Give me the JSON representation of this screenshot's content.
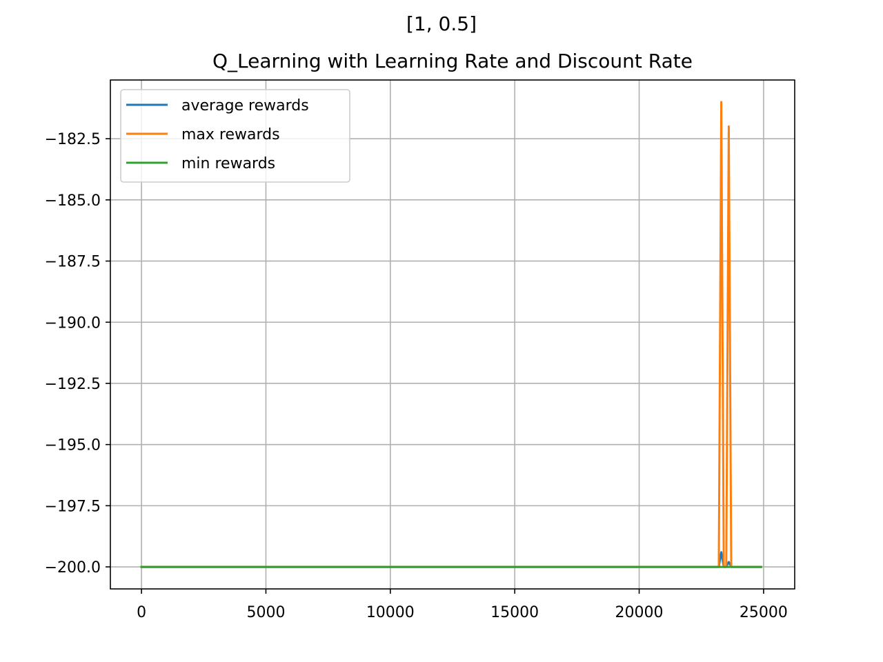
{
  "figure": {
    "suptitle": "[1, 0.5]",
    "title": "Q_Learning with Learning Rate and Discount Rate"
  },
  "chart_data": {
    "type": "line",
    "title": "Q_Learning with Learning Rate and Discount Rate",
    "suptitle": "[1, 0.5]",
    "xlabel": "",
    "ylabel": "",
    "xlim": [
      -1250,
      26250
    ],
    "ylim": [
      -200.9,
      -180.1
    ],
    "xticks": [
      0,
      5000,
      10000,
      15000,
      20000,
      25000
    ],
    "xtick_labels": [
      "0",
      "5000",
      "10000",
      "15000",
      "20000",
      "25000"
    ],
    "yticks": [
      -200.0,
      -197.5,
      -195.0,
      -192.5,
      -190.0,
      -187.5,
      -185.0,
      -182.5
    ],
    "ytick_labels": [
      "−200.0",
      "−197.5",
      "−195.0",
      "−192.5",
      "−190.0",
      "−187.5",
      "−185.0",
      "−182.5"
    ],
    "grid": true,
    "legend_position": "upper-left",
    "series": [
      {
        "name": "average rewards",
        "color": "#1f77b4",
        "x": [
          0,
          23200,
          23300,
          23400,
          23500,
          23600,
          23700,
          24900
        ],
        "y": [
          -200.0,
          -200.0,
          -199.4,
          -200.0,
          -200.0,
          -199.8,
          -200.0,
          -200.0
        ]
      },
      {
        "name": "max rewards",
        "color": "#ff7f0e",
        "x": [
          0,
          23200,
          23300,
          23400,
          23500,
          23600,
          23700,
          24900
        ],
        "y": [
          -200.0,
          -200.0,
          -181.0,
          -200.0,
          -200.0,
          -182.0,
          -200.0,
          -200.0
        ]
      },
      {
        "name": "min rewards",
        "color": "#2ca02c",
        "x": [
          0,
          24900
        ],
        "y": [
          -200.0,
          -200.0
        ]
      }
    ]
  }
}
